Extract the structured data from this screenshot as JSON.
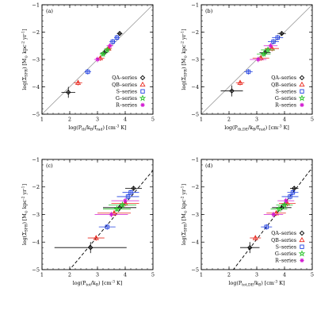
{
  "colors": {
    "QA": "#000000",
    "QB": "#e8281e",
    "S": "#1f3fe0",
    "G": "#2ec42e",
    "R": "#d21fd2",
    "identity_line": "#9a9a9a",
    "fit_line": "#000000"
  },
  "legend": [
    {
      "key": "QA",
      "label": "QA–series",
      "marker": "diamond"
    },
    {
      "key": "QB",
      "label": "QB–series",
      "marker": "triangle"
    },
    {
      "key": "S",
      "label": "S–series",
      "marker": "square"
    },
    {
      "key": "G",
      "label": "G–series",
      "marker": "star"
    },
    {
      "key": "R",
      "label": "R–series",
      "marker": "asterisk"
    }
  ],
  "chart_data": [
    {
      "type": "scatter",
      "panel": "(a)",
      "xlabel": "log(P_th/k_B/f_rad) [cm^-3 K]",
      "ylabel": "log(Σ_SFR) [M_⊙ kpc^-2 yr^-1]",
      "xlim": [
        1,
        5
      ],
      "ylim": [
        -5,
        -1
      ],
      "xticks": [
        1,
        2,
        3,
        4,
        5
      ],
      "yticks": [
        -5,
        -4,
        -3,
        -2,
        -1
      ],
      "reference_line": {
        "style": "solid-gray",
        "slope": 1.0,
        "intercept": -6.0
      },
      "series": [
        {
          "key": "QA",
          "points": [
            [
              1.95,
              -4.2,
              0.25,
              0.2
            ],
            [
              3.25,
              -2.75,
              0.12,
              0.1
            ],
            [
              3.8,
              -2.05,
              0.1,
              0.08
            ]
          ]
        },
        {
          "key": "QB",
          "points": [
            [
              2.3,
              -3.85,
              0.15,
              0.1
            ],
            [
              3.1,
              -2.95,
              0.15,
              0.1
            ],
            [
              3.4,
              -2.6,
              0.12,
              0.1
            ]
          ]
        },
        {
          "key": "S",
          "points": [
            [
              2.65,
              -3.45,
              0.12,
              0.1
            ],
            [
              3.55,
              -2.35,
              0.12,
              0.1
            ],
            [
              3.7,
              -2.2,
              0.1,
              0.1
            ]
          ]
        },
        {
          "key": "G",
          "points": [
            [
              3.2,
              -2.8,
              0.12,
              0.1
            ],
            [
              3.35,
              -2.65,
              0.12,
              0.1
            ]
          ]
        },
        {
          "key": "R",
          "points": [
            [
              3.0,
              -3.0,
              0.12,
              0.1
            ],
            [
              3.45,
              -2.5,
              0.12,
              0.1
            ]
          ]
        }
      ]
    },
    {
      "type": "scatter",
      "panel": "(b)",
      "xlabel": "log(P_th,DE/k_B/f_rad) [cm^-3 K]",
      "ylabel": "log(Σ_SFR) [M_⊙ kpc^-2 yr^-1]",
      "xlim": [
        1,
        5
      ],
      "ylim": [
        -5,
        -1
      ],
      "xticks": [
        1,
        2,
        3,
        4,
        5
      ],
      "yticks": [
        -5,
        -4,
        -3,
        -2,
        -1
      ],
      "reference_line": {
        "style": "solid-gray",
        "slope": 1.0,
        "intercept": -6.0
      },
      "series": [
        {
          "key": "QA",
          "points": [
            [
              2.1,
              -4.15,
              0.4,
              0.2
            ],
            [
              3.3,
              -2.75,
              0.2,
              0.1
            ],
            [
              3.9,
              -2.05,
              0.15,
              0.08
            ]
          ]
        },
        {
          "key": "QB",
          "points": [
            [
              2.4,
              -3.85,
              0.15,
              0.1
            ],
            [
              3.15,
              -2.95,
              0.3,
              0.1
            ],
            [
              3.55,
              -2.6,
              0.25,
              0.1
            ]
          ]
        },
        {
          "key": "S",
          "points": [
            [
              2.7,
              -3.45,
              0.15,
              0.1
            ],
            [
              3.6,
              -2.35,
              0.2,
              0.1
            ],
            [
              3.75,
              -2.2,
              0.2,
              0.1
            ]
          ]
        },
        {
          "key": "G",
          "points": [
            [
              3.25,
              -2.8,
              0.25,
              0.1
            ],
            [
              3.4,
              -2.65,
              0.25,
              0.1
            ]
          ]
        },
        {
          "key": "R",
          "points": [
            [
              3.05,
              -3.0,
              0.3,
              0.1
            ],
            [
              3.5,
              -2.5,
              0.25,
              0.1
            ]
          ]
        }
      ]
    },
    {
      "type": "scatter",
      "panel": "(c)",
      "xlabel": "log(P_tot/k_B) [cm^-3 K]",
      "ylabel": "log(Σ_SFR) [M_⊙ kpc^-2 yr^-1]",
      "xlim": [
        1,
        5
      ],
      "ylim": [
        -5,
        -1
      ],
      "xticks": [
        1,
        2,
        3,
        4,
        5
      ],
      "yticks": [
        -5,
        -4,
        -3,
        -2,
        -1
      ],
      "reference_line": {
        "style": "dashed-black",
        "slope": 1.2,
        "intercept": -7.4
      },
      "series": [
        {
          "key": "QA",
          "points": [
            [
              2.75,
              -4.2,
              1.3,
              0.2
            ],
            [
              3.8,
              -2.75,
              0.6,
              0.1
            ],
            [
              4.3,
              -2.05,
              0.3,
              0.08
            ]
          ]
        },
        {
          "key": "QB",
          "points": [
            [
              2.95,
              -3.85,
              0.3,
              0.1
            ],
            [
              3.6,
              -2.95,
              0.6,
              0.1
            ],
            [
              4.0,
              -2.6,
              0.5,
              0.1
            ]
          ]
        },
        {
          "key": "S",
          "points": [
            [
              3.35,
              -3.45,
              0.3,
              0.1
            ],
            [
              4.1,
              -2.35,
              0.4,
              0.1
            ],
            [
              4.2,
              -2.2,
              0.3,
              0.1
            ]
          ]
        },
        {
          "key": "G",
          "points": [
            [
              3.7,
              -2.8,
              0.5,
              0.1
            ],
            [
              3.9,
              -2.65,
              0.5,
              0.1
            ]
          ]
        },
        {
          "key": "R",
          "points": [
            [
              3.5,
              -3.0,
              0.6,
              0.1
            ],
            [
              4.0,
              -2.5,
              0.5,
              0.1
            ]
          ]
        }
      ]
    },
    {
      "type": "scatter",
      "panel": "(d)",
      "xlabel": "log(P_tot,DE/k_B) [cm^-3 K]",
      "ylabel": "log(Σ_SFR) [M_⊙ kpc^-2 yr^-1]",
      "xlim": [
        1,
        5
      ],
      "ylim": [
        -5,
        -1
      ],
      "xticks": [
        1,
        2,
        3,
        4,
        5
      ],
      "yticks": [
        -5,
        -4,
        -3,
        -2,
        -1
      ],
      "reference_line": {
        "style": "dashed-black",
        "slope": 1.3,
        "intercept": -7.8
      },
      "series": [
        {
          "key": "QA",
          "points": [
            [
              2.75,
              -4.2,
              0.35,
              0.2
            ],
            [
              3.9,
              -2.75,
              0.35,
              0.1
            ],
            [
              4.35,
              -2.05,
              0.15,
              0.08
            ]
          ]
        },
        {
          "key": "QB",
          "points": [
            [
              2.95,
              -3.85,
              0.2,
              0.1
            ],
            [
              3.7,
              -2.95,
              0.35,
              0.1
            ],
            [
              4.1,
              -2.6,
              0.3,
              0.1
            ]
          ]
        },
        {
          "key": "S",
          "points": [
            [
              3.35,
              -3.45,
              0.2,
              0.1
            ],
            [
              4.2,
              -2.35,
              0.3,
              0.1
            ],
            [
              4.3,
              -2.2,
              0.2,
              0.1
            ]
          ]
        },
        {
          "key": "G",
          "points": [
            [
              3.8,
              -2.8,
              0.3,
              0.1
            ],
            [
              4.0,
              -2.65,
              0.3,
              0.1
            ]
          ]
        },
        {
          "key": "R",
          "points": [
            [
              3.6,
              -3.0,
              0.35,
              0.1
            ],
            [
              4.05,
              -2.5,
              0.3,
              0.1
            ]
          ]
        }
      ]
    }
  ]
}
